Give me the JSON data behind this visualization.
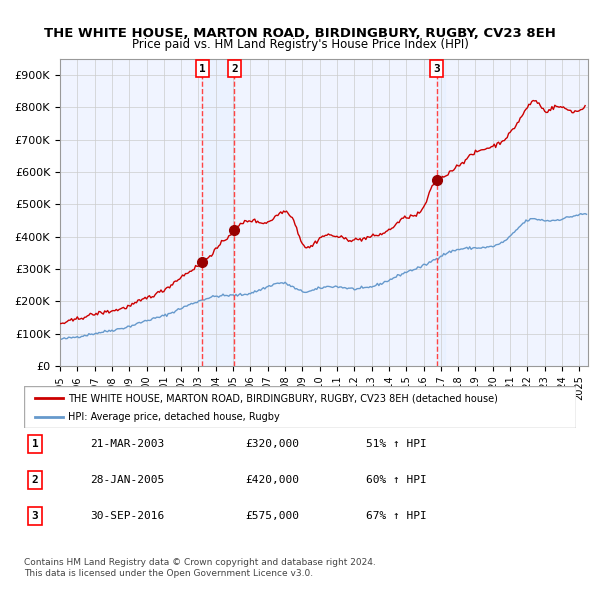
{
  "title": "THE WHITE HOUSE, MARTON ROAD, BIRDINGBURY, RUGBY, CV23 8EH",
  "subtitle": "Price paid vs. HM Land Registry's House Price Index (HPI)",
  "ylabel": "",
  "xlim_start": 1995.0,
  "xlim_end": 2025.5,
  "ylim": [
    0,
    950000
  ],
  "yticks": [
    0,
    100000,
    200000,
    300000,
    400000,
    500000,
    600000,
    700000,
    800000,
    900000
  ],
  "ytick_labels": [
    "£0",
    "£100K",
    "£200K",
    "£300K",
    "£400K",
    "£500K",
    "£600K",
    "£700K",
    "£800K",
    "£900K"
  ],
  "xtick_years": [
    1995,
    1996,
    1997,
    1998,
    1999,
    2000,
    2001,
    2002,
    2003,
    2004,
    2005,
    2006,
    2007,
    2008,
    2009,
    2010,
    2011,
    2012,
    2013,
    2014,
    2015,
    2016,
    2017,
    2018,
    2019,
    2020,
    2021,
    2022,
    2023,
    2024,
    2025
  ],
  "hpi_color": "#6699cc",
  "price_color": "#cc0000",
  "sale_marker_color": "#990000",
  "vline_color": "#ff4444",
  "shade_color": "#ddeeff",
  "grid_color": "#cccccc",
  "bg_color": "#ffffff",
  "sale1_x": 2003.22,
  "sale1_y": 320000,
  "sale2_x": 2005.08,
  "sale2_y": 420000,
  "sale3_x": 2016.75,
  "sale3_y": 575000,
  "legend_line1": "THE WHITE HOUSE, MARTON ROAD, BIRDINGBURY, RUGBY, CV23 8EH (detached house)",
  "legend_line2": "HPI: Average price, detached house, Rugby",
  "table_rows": [
    {
      "num": "1",
      "date": "21-MAR-2003",
      "price": "£320,000",
      "hpi": "51% ↑ HPI"
    },
    {
      "num": "2",
      "date": "28-JAN-2005",
      "price": "£420,000",
      "hpi": "60% ↑ HPI"
    },
    {
      "num": "3",
      "date": "30-SEP-2016",
      "price": "£575,000",
      "hpi": "67% ↑ HPI"
    }
  ],
  "footnote1": "Contains HM Land Registry data © Crown copyright and database right 2024.",
  "footnote2": "This data is licensed under the Open Government Licence v3.0."
}
